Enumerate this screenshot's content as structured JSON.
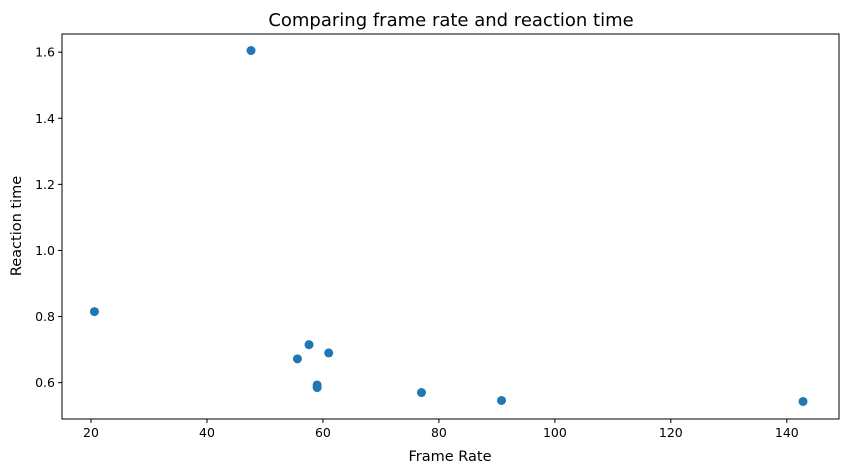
{
  "chart_data": {
    "type": "scatter",
    "title": "Comparing frame rate and reaction time",
    "xlabel": "Frame Rate",
    "ylabel": "Reaction time",
    "xlim": [
      15,
      149
    ],
    "ylim": [
      0.49,
      1.655
    ],
    "x_ticks": [
      {
        "value": 20,
        "label": "20"
      },
      {
        "value": 40,
        "label": "40"
      },
      {
        "value": 60,
        "label": "60"
      },
      {
        "value": 80,
        "label": "80"
      },
      {
        "value": 100,
        "label": "100"
      },
      {
        "value": 120,
        "label": "120"
      },
      {
        "value": 140,
        "label": "140"
      }
    ],
    "y_ticks": [
      {
        "value": 0.6,
        "label": "0.6"
      },
      {
        "value": 0.8,
        "label": "0.8"
      },
      {
        "value": 1.0,
        "label": "1.0"
      },
      {
        "value": 1.2,
        "label": "1.2"
      },
      {
        "value": 1.4,
        "label": "1.4"
      },
      {
        "value": 1.6,
        "label": "1.6"
      }
    ],
    "grid": false,
    "legend": "none",
    "series": [
      {
        "color": "#1f77b4",
        "points": [
          {
            "x": 20.6,
            "y": 0.815
          },
          {
            "x": 47.6,
            "y": 1.605
          },
          {
            "x": 55.6,
            "y": 0.672
          },
          {
            "x": 57.6,
            "y": 0.715
          },
          {
            "x": 59.0,
            "y": 0.593
          },
          {
            "x": 59.0,
            "y": 0.585
          },
          {
            "x": 61.0,
            "y": 0.69
          },
          {
            "x": 77.0,
            "y": 0.57
          },
          {
            "x": 90.8,
            "y": 0.546
          },
          {
            "x": 142.8,
            "y": 0.543
          }
        ]
      }
    ]
  }
}
